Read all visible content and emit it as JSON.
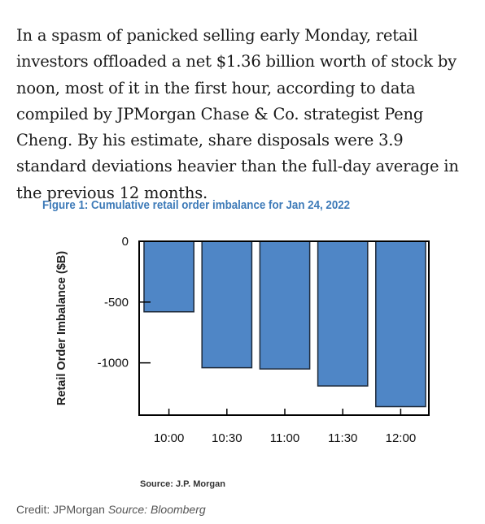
{
  "article": {
    "paragraph": "In a spasm of panicked selling early Monday, retail investors offloaded a net $1.36 billion worth of stock by noon, most of it in the first hour, according to data compiled by JPMorgan Chase & Co. strategist Peng Cheng. By his estimate, share disposals were 3.9 standard deviations heavier than the full-day average in the previous 12 months."
  },
  "figure": {
    "title": "Figure 1: Cumulative retail order imbalance for Jan 24, 2022",
    "source": "Source: J.P. Morgan"
  },
  "credit": {
    "label": "Credit: JPMorgan",
    "source": "Source: Bloomberg"
  },
  "chart_data": {
    "type": "bar",
    "title": "Figure 1: Cumulative retail order imbalance for Jan 24, 2022",
    "xlabel": "",
    "ylabel": "Retail Order Imbalance ($B)",
    "categories": [
      "10:00",
      "10:30",
      "11:00",
      "11:30",
      "12:00"
    ],
    "values": [
      -580,
      -1040,
      -1050,
      -1190,
      -1360
    ],
    "yticks": [
      0,
      -500,
      -1000
    ],
    "ylim": [
      -1430,
      0
    ],
    "grid": false,
    "legend": "none",
    "bar_color": "#4f86c6"
  }
}
